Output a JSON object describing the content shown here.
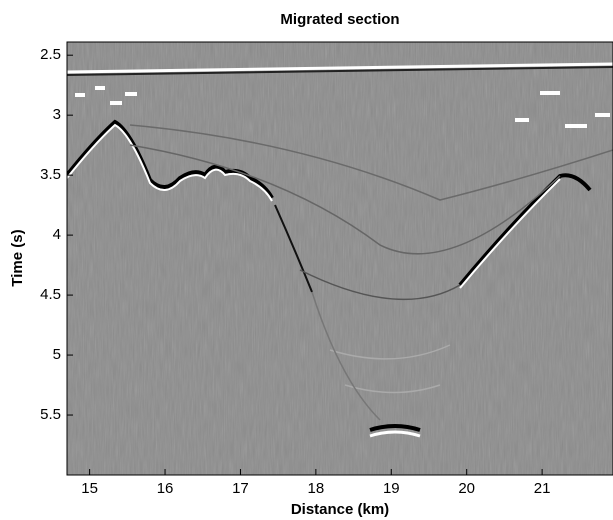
{
  "chart_data": {
    "type": "image",
    "title": "Migrated section",
    "xlabel": "Distance (km)",
    "ylabel": "Time (s)",
    "xlim": [
      14.7,
      21.94
    ],
    "xticks": [
      15,
      16,
      17,
      18,
      19,
      20,
      21
    ],
    "ylim": [
      2.39,
      6.0
    ],
    "yticks": [
      2.5,
      3,
      3.5,
      4,
      4.5,
      5,
      5.5
    ],
    "y_inverted": true,
    "colormap": "gray"
  }
}
